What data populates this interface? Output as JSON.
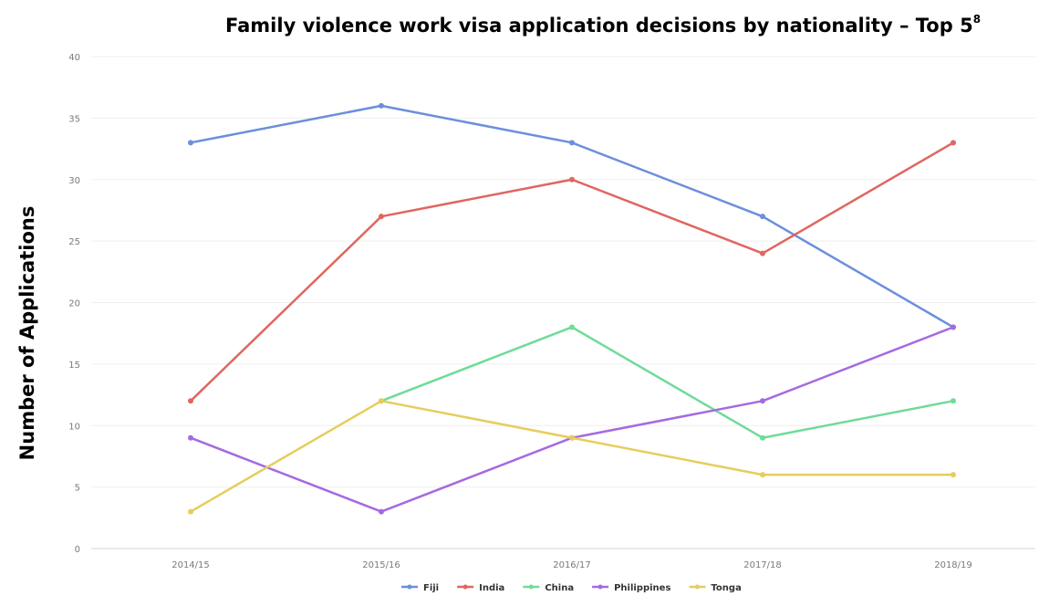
{
  "chart_data": {
    "type": "line",
    "title": "Family violence work visa application decisions by nationality – Top 5",
    "title_superscript": "8",
    "xlabel": "",
    "ylabel": "Number of Applications",
    "categories": [
      "2014/15",
      "2015/16",
      "2016/17",
      "2017/18",
      "2018/19"
    ],
    "ylim": [
      0,
      40
    ],
    "yticks": [
      0,
      5,
      10,
      15,
      20,
      25,
      30,
      35,
      40
    ],
    "grid": true,
    "legend_position": "bottom",
    "series": [
      {
        "name": "Fiji",
        "color": "#6b8fdc",
        "values": [
          33,
          36,
          33,
          27,
          18
        ]
      },
      {
        "name": "India",
        "color": "#e0665f",
        "values": [
          12,
          27,
          30,
          24,
          33
        ]
      },
      {
        "name": "China",
        "color": "#6fdb98",
        "values": [
          null,
          12,
          18,
          9,
          12
        ]
      },
      {
        "name": "Philippines",
        "color": "#a56ae0",
        "values": [
          9,
          3,
          9,
          12,
          18
        ]
      },
      {
        "name": "Tonga",
        "color": "#e6cd5c",
        "values": [
          3,
          12,
          9,
          6,
          6
        ]
      }
    ]
  }
}
